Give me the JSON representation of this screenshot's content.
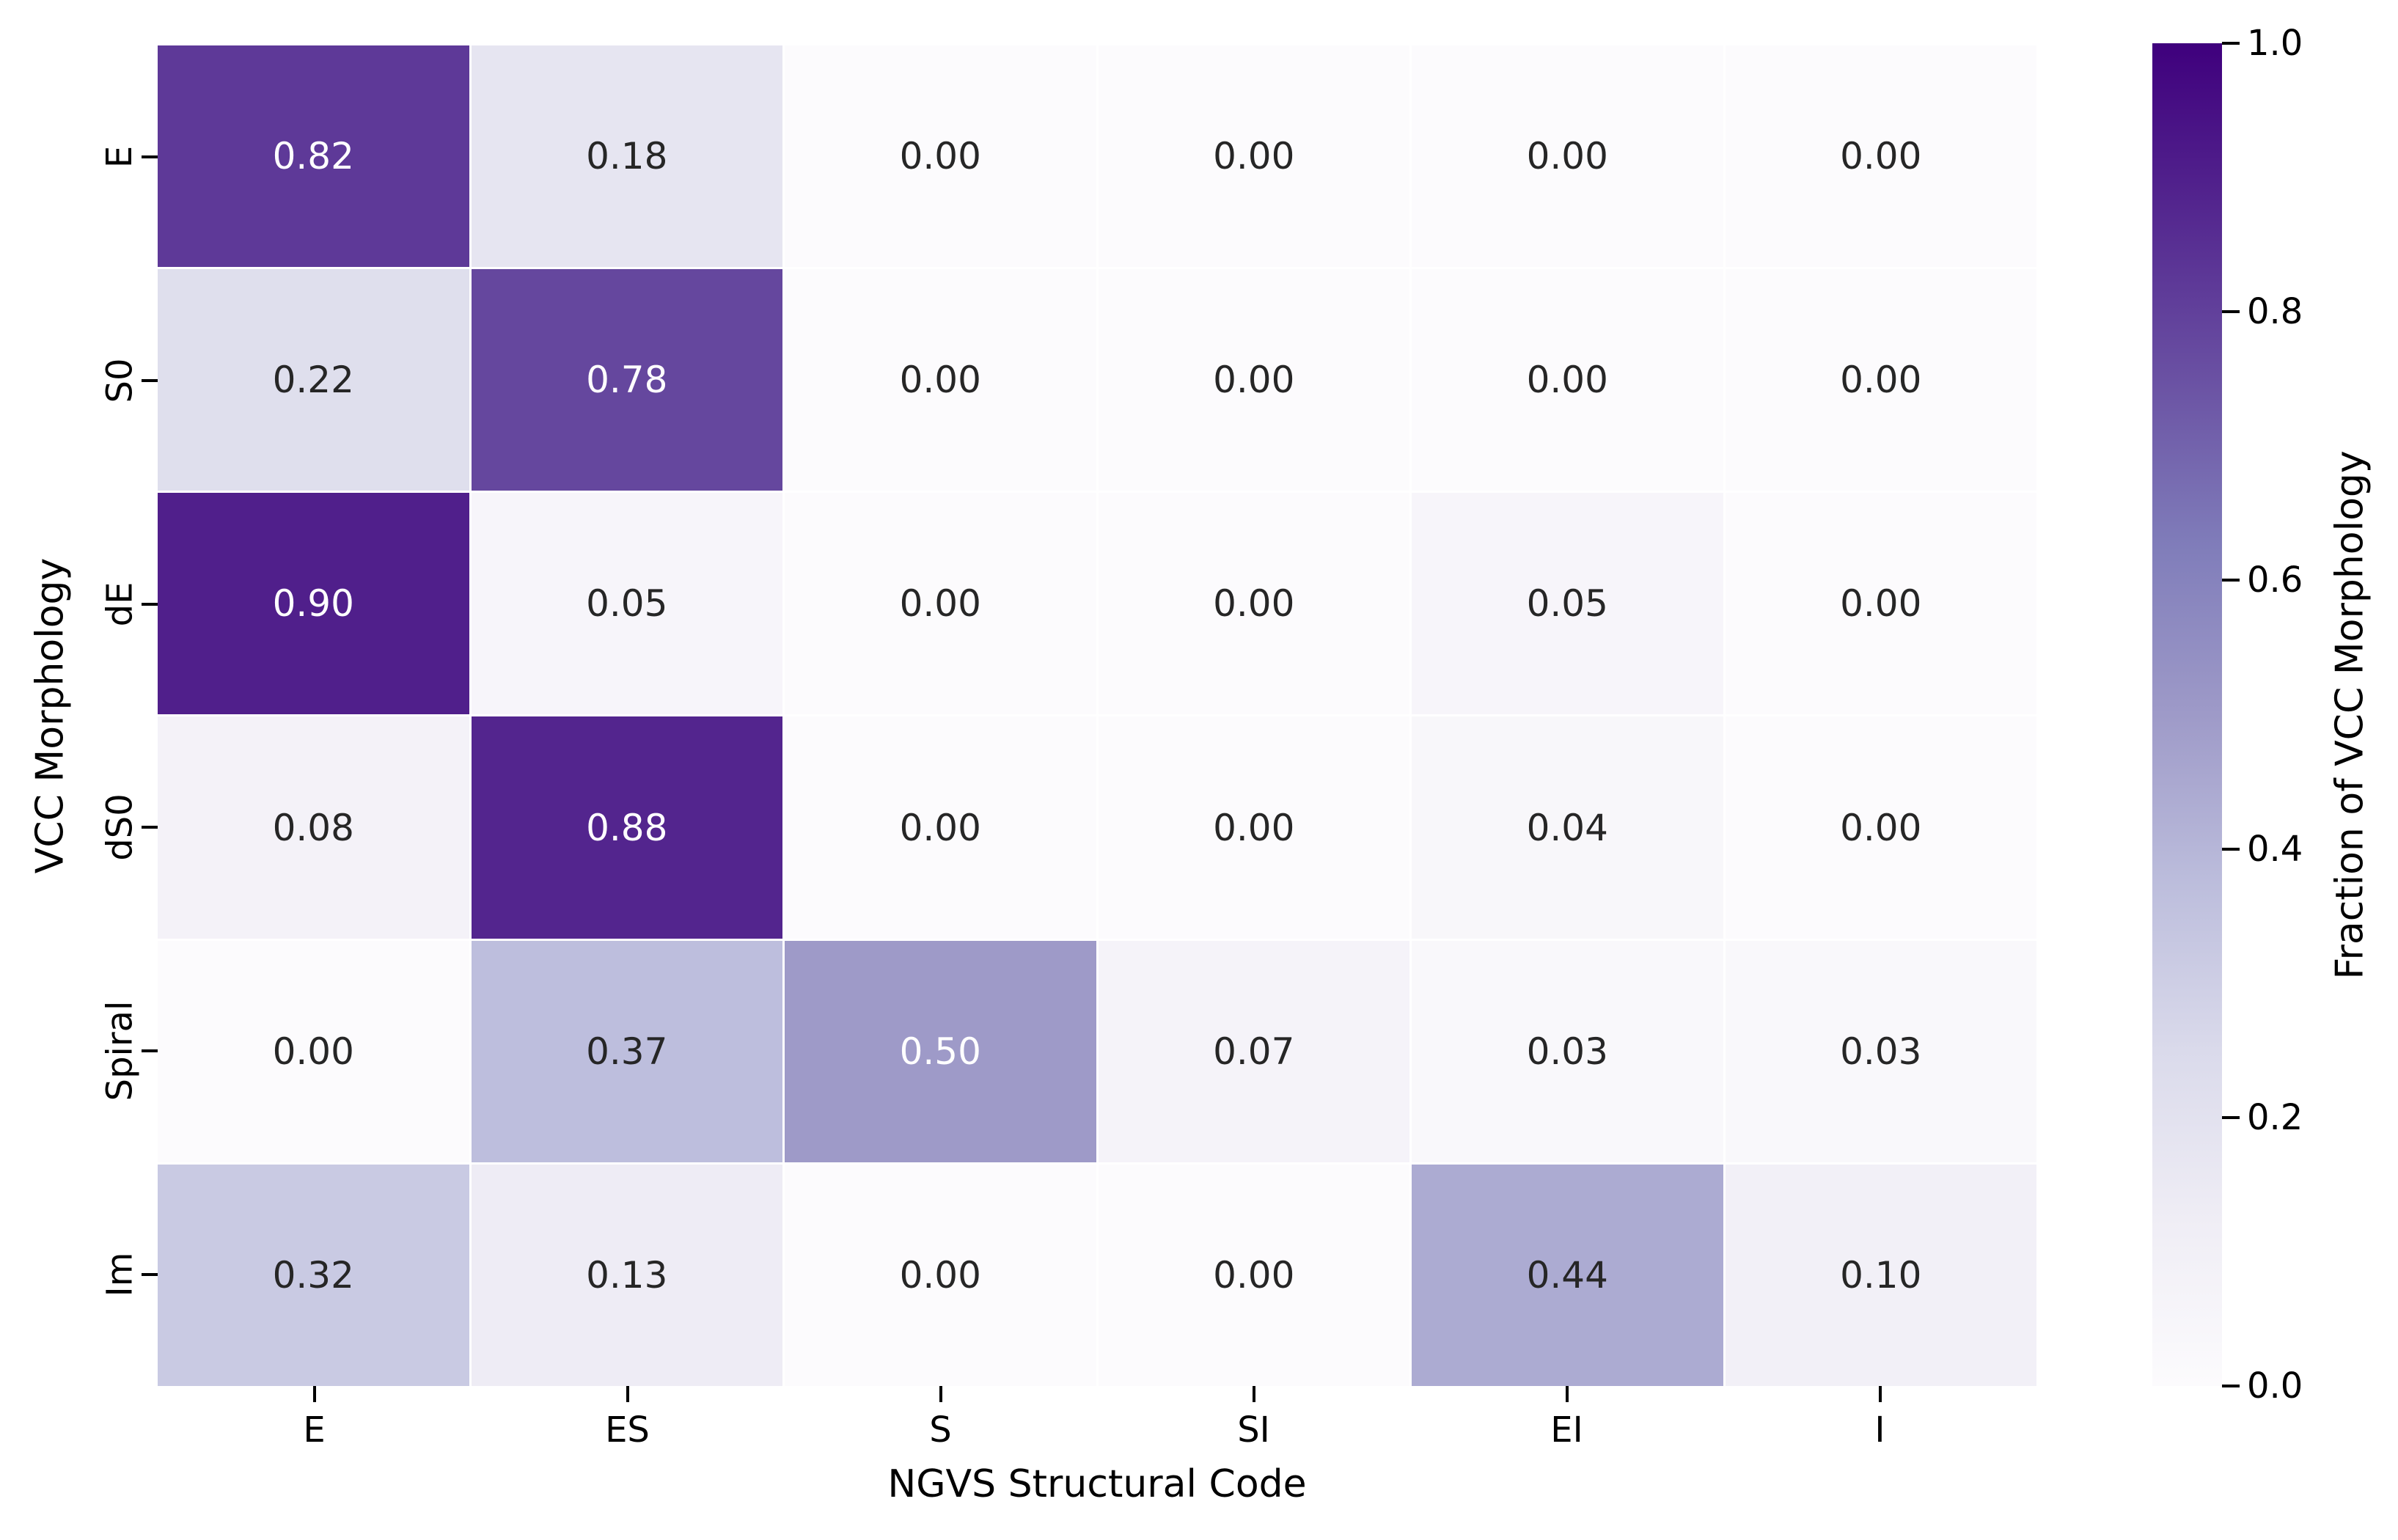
{
  "figure": {
    "background": "#ffffff"
  },
  "chart_data": {
    "type": "heatmap",
    "title": "",
    "xlabel": "NGVS Structural Code",
    "ylabel": "VCC Morphology",
    "colorbar_label": "Fraction of VCC Morphology",
    "x_categories": [
      "E",
      "ES",
      "S",
      "SI",
      "EI",
      "I"
    ],
    "y_categories": [
      "E",
      "S0",
      "dE",
      "dS0",
      "Spiral",
      "Im"
    ],
    "values": [
      [
        0.82,
        0.18,
        0.0,
        0.0,
        0.0,
        0.0
      ],
      [
        0.22,
        0.78,
        0.0,
        0.0,
        0.0,
        0.0
      ],
      [
        0.9,
        0.05,
        0.0,
        0.0,
        0.05,
        0.0
      ],
      [
        0.08,
        0.88,
        0.0,
        0.0,
        0.04,
        0.0
      ],
      [
        0.0,
        0.37,
        0.5,
        0.07,
        0.03,
        0.03
      ],
      [
        0.32,
        0.13,
        0.0,
        0.0,
        0.44,
        0.1
      ]
    ],
    "value_format_decimals": 2,
    "vmin": 0.0,
    "vmax": 1.0,
    "grid": "off",
    "legend_position": "right-colorbar",
    "colormap": {
      "name": "Purples",
      "anchors": [
        "#fcfbfd",
        "#efedf5",
        "#dadaeb",
        "#bcbddc",
        "#9e9ac8",
        "#807dba",
        "#6a51a3",
        "#54278f",
        "#3f007d"
      ]
    },
    "colorbar_ticks": [
      {
        "value": 1.0,
        "label": "1.0"
      },
      {
        "value": 0.8,
        "label": "0.8"
      },
      {
        "value": 0.6,
        "label": "0.6"
      },
      {
        "value": 0.4,
        "label": "0.4"
      },
      {
        "value": 0.2,
        "label": "0.2"
      },
      {
        "value": 0.0,
        "label": "0.0"
      }
    ],
    "annotation_text_dark": "#262626",
    "annotation_text_light": "#ffffff",
    "tick_color": "#000000",
    "label_color": "#000000",
    "cell_gap_color": "#ffffff"
  }
}
